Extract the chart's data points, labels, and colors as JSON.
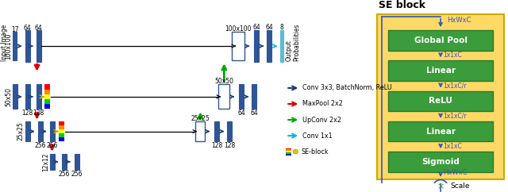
{
  "bg_color": "#ffffff",
  "main_color": "#2f5597",
  "arrow_blue": "#1f3f7f",
  "arrow_red": "#dd0000",
  "arrow_green": "#00aa00",
  "arrow_cyan": "#00bbdd",
  "arrow_yellow": "#ccaa00",
  "green_block": "#3a9c3a",
  "green_dark": "#2a7a2a",
  "se_bg": "#ffd966",
  "se_outline": "#ccaa00",
  "blue_line": "#3355bb",
  "legend_items": [
    {
      "label": "Conv 3x3, BatchNorm, ReLU",
      "color": "#1f3f7f"
    },
    {
      "label": "MaxPool 2x2",
      "color": "#dd0000"
    },
    {
      "label": "UpConv 2x2",
      "color": "#00aa00"
    },
    {
      "label": "Conv 1x1",
      "color": "#00bbdd"
    },
    {
      "label": "SE-block",
      "color": "#ccaa00",
      "se": true
    }
  ],
  "se_green_labels": [
    "Global Pool",
    "Linear",
    "ReLU",
    "Linear",
    "Sigmoid"
  ],
  "se_inter_labels": [
    "1x1xC",
    "1x1xC/r",
    "1x1xC/r",
    "1x1xC"
  ]
}
